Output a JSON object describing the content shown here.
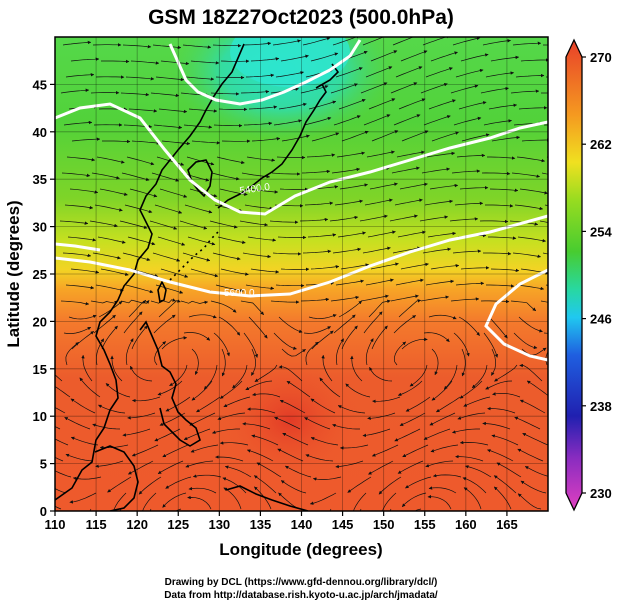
{
  "figure": {
    "title": "GSM 18Z27Oct2023 (500.0hPa)",
    "credit_line_1": "Drawing by DCL (https://www.gfd-dennou.org/library/dcl/)",
    "credit_line_2": "Data from http://database.rish.kyoto-u.ac.jp/arch/jmadata/"
  },
  "chart_data": {
    "type": "heatmap",
    "title": "GSM 18Z27Oct2023 (500.0hPa)",
    "xlabel": "Longitude (degrees)",
    "ylabel": "Latitude  (degrees)",
    "xlim": [
      110,
      170
    ],
    "ylim": [
      0,
      50
    ],
    "x_ticks": [
      110,
      115,
      120,
      125,
      130,
      135,
      140,
      145,
      150,
      155,
      160,
      165
    ],
    "y_ticks": [
      0,
      5,
      10,
      15,
      20,
      25,
      30,
      35,
      40,
      45
    ],
    "grid": true,
    "overlay": "streamlines with arrows (wind vectors), coastlines",
    "colorbar": {
      "position": "right",
      "range": [
        230,
        270
      ],
      "tick_values": [
        230,
        238,
        246,
        254,
        262,
        270
      ],
      "tick_labels": [
        "230",
        "238",
        "246",
        "254",
        "262",
        "270"
      ],
      "colors": [
        "#e040c0",
        "#2020b0",
        "#1f5fe0",
        "#20c8f0",
        "#28d8a0",
        "#48cc30",
        "#98dc20",
        "#f0e020",
        "#f59a20",
        "#e8402a"
      ]
    },
    "contours": [
      {
        "label": "5400.0",
        "lat_approx": 34
      },
      {
        "label": "5600.0",
        "lat_approx": 25
      }
    ],
    "temperature_profile": [
      {
        "lat": 50,
        "value": 250
      },
      {
        "lat": 45,
        "value": 253
      },
      {
        "lat": 40,
        "value": 255
      },
      {
        "lat": 35,
        "value": 257
      },
      {
        "lat": 30,
        "value": 261
      },
      {
        "lat": 25,
        "value": 265
      },
      {
        "lat": 20,
        "value": 267
      },
      {
        "lat": 15,
        "value": 268
      },
      {
        "lat": 10,
        "value": 267
      },
      {
        "lat": 5,
        "value": 267
      },
      {
        "lat": 0,
        "value": 267
      }
    ]
  }
}
